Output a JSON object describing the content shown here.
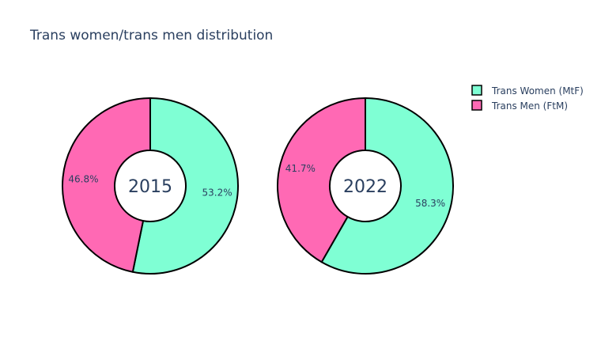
{
  "chart_data": {
    "type": "pie",
    "title": "Trans women/trans men distribution",
    "legend_position": "top-right",
    "labels": [
      "Trans Women (MtF)",
      "Trans Men (FtM)"
    ],
    "colors": [
      "#7fffd4",
      "#ff69b4"
    ],
    "outline_color": "#000000",
    "charts": [
      {
        "center_label": "2015",
        "values": [
          53.2,
          46.8
        ],
        "value_labels": [
          "53.2%",
          "46.8%"
        ]
      },
      {
        "center_label": "2022",
        "values": [
          58.3,
          41.7
        ],
        "value_labels": [
          "58.3%",
          "41.7%"
        ]
      }
    ]
  }
}
